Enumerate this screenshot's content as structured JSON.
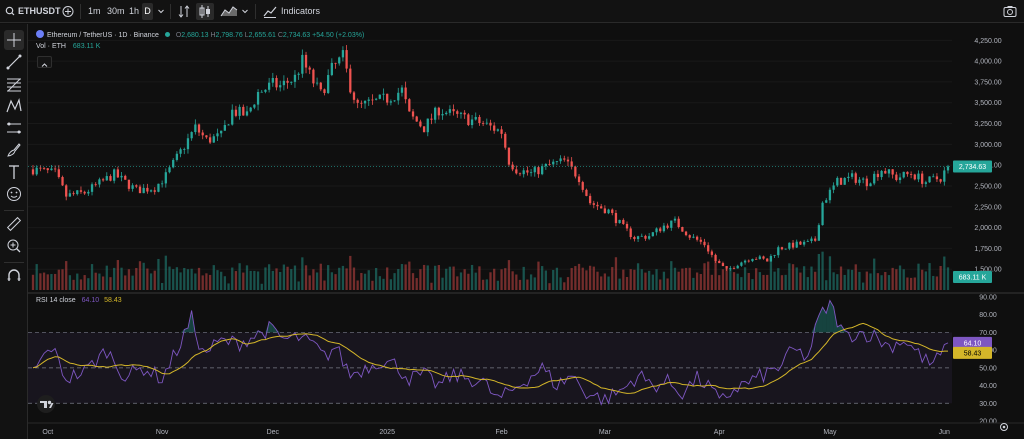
{
  "topbar": {
    "symbol": "ETHUSDT",
    "intervals": [
      "1m",
      "30m",
      "1h",
      "D"
    ],
    "active_interval": "D",
    "indicators_label": "Indicators"
  },
  "legend": {
    "title": "Ethereum / TetherUS · 1D · Binance",
    "open_label": "O",
    "open": "2,680.13",
    "high_label": "H",
    "high": "2,798.76",
    "low_label": "L",
    "low": "2,655.61",
    "close_label": "C",
    "close": "2,734.63",
    "change": "+54.50 (+2.03%)",
    "vol_label": "Vol · ETH",
    "vol_value": "683.11 K"
  },
  "rsi_legend": {
    "label": "RSI 14 close",
    "value1": "64.10",
    "value2": "58.43"
  },
  "colors": {
    "up": "#26a69a",
    "down": "#ef5350",
    "rsi": "#7e57c2",
    "rsi_ma": "#d4b629",
    "background": "#0f0f0f"
  },
  "chart_data": {
    "type": "candlestick",
    "symbol": "ETHUSDT",
    "interval": "1D",
    "price_axis_ticks": [
      1500,
      1750,
      2000,
      2250,
      2500,
      2750,
      3000,
      3250,
      3500,
      3750,
      4000,
      4250
    ],
    "price_axis_labels": [
      "1,500.00",
      "1,750.00",
      "2,000.00",
      "2,250.00",
      "2,500.00",
      "2,750.00",
      "3,000.00",
      "3,250.00",
      "3,500.00",
      "3,750.00",
      "4,000.00",
      "4,250.00"
    ],
    "price_range": [
      1250,
      4350
    ],
    "last_price": 2734.63,
    "last_price_label": "2,734.63",
    "last_volume_label": "683.11 K",
    "rsi_axis_ticks": [
      20,
      30,
      40,
      50,
      60,
      70,
      80,
      90
    ],
    "rsi_axis_labels": [
      "20.00",
      "30.00",
      "40.00",
      "50.00",
      "60.00",
      "70.00",
      "80.00",
      "90.00"
    ],
    "rsi_range": [
      20,
      90
    ],
    "rsi_bands": [
      30,
      70
    ],
    "rsi_mid": 50,
    "rsi_last": 64.1,
    "rsi_ma_last": 58.43,
    "rsi_last_label": "64.10",
    "rsi_ma_last_label": "58.43",
    "x_labels": [
      {
        "label": "Oct",
        "day": 4
      },
      {
        "label": "Nov",
        "day": 35
      },
      {
        "label": "Dec",
        "day": 65
      },
      {
        "label": "2025",
        "day": 96
      },
      {
        "label": "Feb",
        "day": 127
      },
      {
        "label": "Mar",
        "day": 155
      },
      {
        "label": "Apr",
        "day": 186
      },
      {
        "label": "May",
        "day": 216
      },
      {
        "label": "Jun",
        "day": 247
      }
    ],
    "price_keypoints": [
      [
        0,
        2700
      ],
      [
        6,
        2650
      ],
      [
        9,
        2380
      ],
      [
        14,
        2420
      ],
      [
        22,
        2640
      ],
      [
        28,
        2450
      ],
      [
        33,
        2480
      ],
      [
        36,
        2620
      ],
      [
        44,
        3200
      ],
      [
        47,
        3050
      ],
      [
        51,
        3100
      ],
      [
        54,
        3400
      ],
      [
        58,
        3350
      ],
      [
        61,
        3620
      ],
      [
        65,
        3720
      ],
      [
        67,
        3700
      ],
      [
        71,
        3800
      ],
      [
        73,
        4000
      ],
      [
        76,
        3750
      ],
      [
        78,
        3600
      ],
      [
        81,
        3900
      ],
      [
        84,
        4050
      ],
      [
        86,
        3700
      ],
      [
        88,
        3450
      ],
      [
        92,
        3500
      ],
      [
        96,
        3550
      ],
      [
        100,
        3650
      ],
      [
        102,
        3350
      ],
      [
        106,
        3200
      ],
      [
        110,
        3420
      ],
      [
        114,
        3350
      ],
      [
        118,
        3300
      ],
      [
        122,
        3250
      ],
      [
        127,
        3150
      ],
      [
        129,
        2800
      ],
      [
        131,
        2700
      ],
      [
        135,
        2650
      ],
      [
        140,
        2750
      ],
      [
        144,
        2800
      ],
      [
        148,
        2600
      ],
      [
        151,
        2300
      ],
      [
        156,
        2200
      ],
      [
        160,
        2000
      ],
      [
        163,
        1880
      ],
      [
        167,
        1900
      ],
      [
        171,
        2020
      ],
      [
        174,
        2070
      ],
      [
        178,
        1900
      ],
      [
        182,
        1800
      ],
      [
        185,
        1600
      ],
      [
        188,
        1480
      ],
      [
        191,
        1570
      ],
      [
        195,
        1650
      ],
      [
        199,
        1600
      ],
      [
        202,
        1750
      ],
      [
        206,
        1790
      ],
      [
        210,
        1810
      ],
      [
        212,
        1850
      ],
      [
        214,
        2300
      ],
      [
        218,
        2550
      ],
      [
        222,
        2600
      ],
      [
        226,
        2550
      ],
      [
        230,
        2700
      ],
      [
        234,
        2600
      ],
      [
        238,
        2650
      ],
      [
        242,
        2550
      ],
      [
        246,
        2600
      ],
      [
        248,
        2734.63
      ]
    ],
    "rsi_keypoints": [
      [
        0,
        48
      ],
      [
        5,
        62
      ],
      [
        9,
        44
      ],
      [
        14,
        48
      ],
      [
        20,
        60
      ],
      [
        25,
        45
      ],
      [
        30,
        50
      ],
      [
        35,
        44
      ],
      [
        40,
        64
      ],
      [
        43,
        78
      ],
      [
        46,
        58
      ],
      [
        51,
        65
      ],
      [
        56,
        64
      ],
      [
        60,
        68
      ],
      [
        64,
        72
      ],
      [
        68,
        66
      ],
      [
        72,
        67
      ],
      [
        76,
        63
      ],
      [
        79,
        56
      ],
      [
        82,
        62
      ],
      [
        86,
        46
      ],
      [
        90,
        50
      ],
      [
        94,
        54
      ],
      [
        98,
        52
      ],
      [
        102,
        44
      ],
      [
        106,
        46
      ],
      [
        110,
        40
      ],
      [
        114,
        46
      ],
      [
        118,
        44
      ],
      [
        122,
        42
      ],
      [
        126,
        32
      ],
      [
        129,
        36
      ],
      [
        134,
        44
      ],
      [
        138,
        50
      ],
      [
        142,
        40
      ],
      [
        146,
        46
      ],
      [
        150,
        36
      ],
      [
        155,
        32
      ],
      [
        160,
        38
      ],
      [
        164,
        46
      ],
      [
        168,
        40
      ],
      [
        172,
        42
      ],
      [
        176,
        36
      ],
      [
        180,
        44
      ],
      [
        184,
        38
      ],
      [
        186,
        30
      ],
      [
        190,
        38
      ],
      [
        194,
        42
      ],
      [
        198,
        46
      ],
      [
        202,
        50
      ],
      [
        206,
        60
      ],
      [
        210,
        56
      ],
      [
        213,
        78
      ],
      [
        216,
        86
      ],
      [
        220,
        68
      ],
      [
        224,
        70
      ],
      [
        228,
        68
      ],
      [
        232,
        62
      ],
      [
        236,
        66
      ],
      [
        240,
        58
      ],
      [
        243,
        52
      ],
      [
        246,
        56
      ],
      [
        248,
        64.1
      ]
    ],
    "n_days": 249
  }
}
